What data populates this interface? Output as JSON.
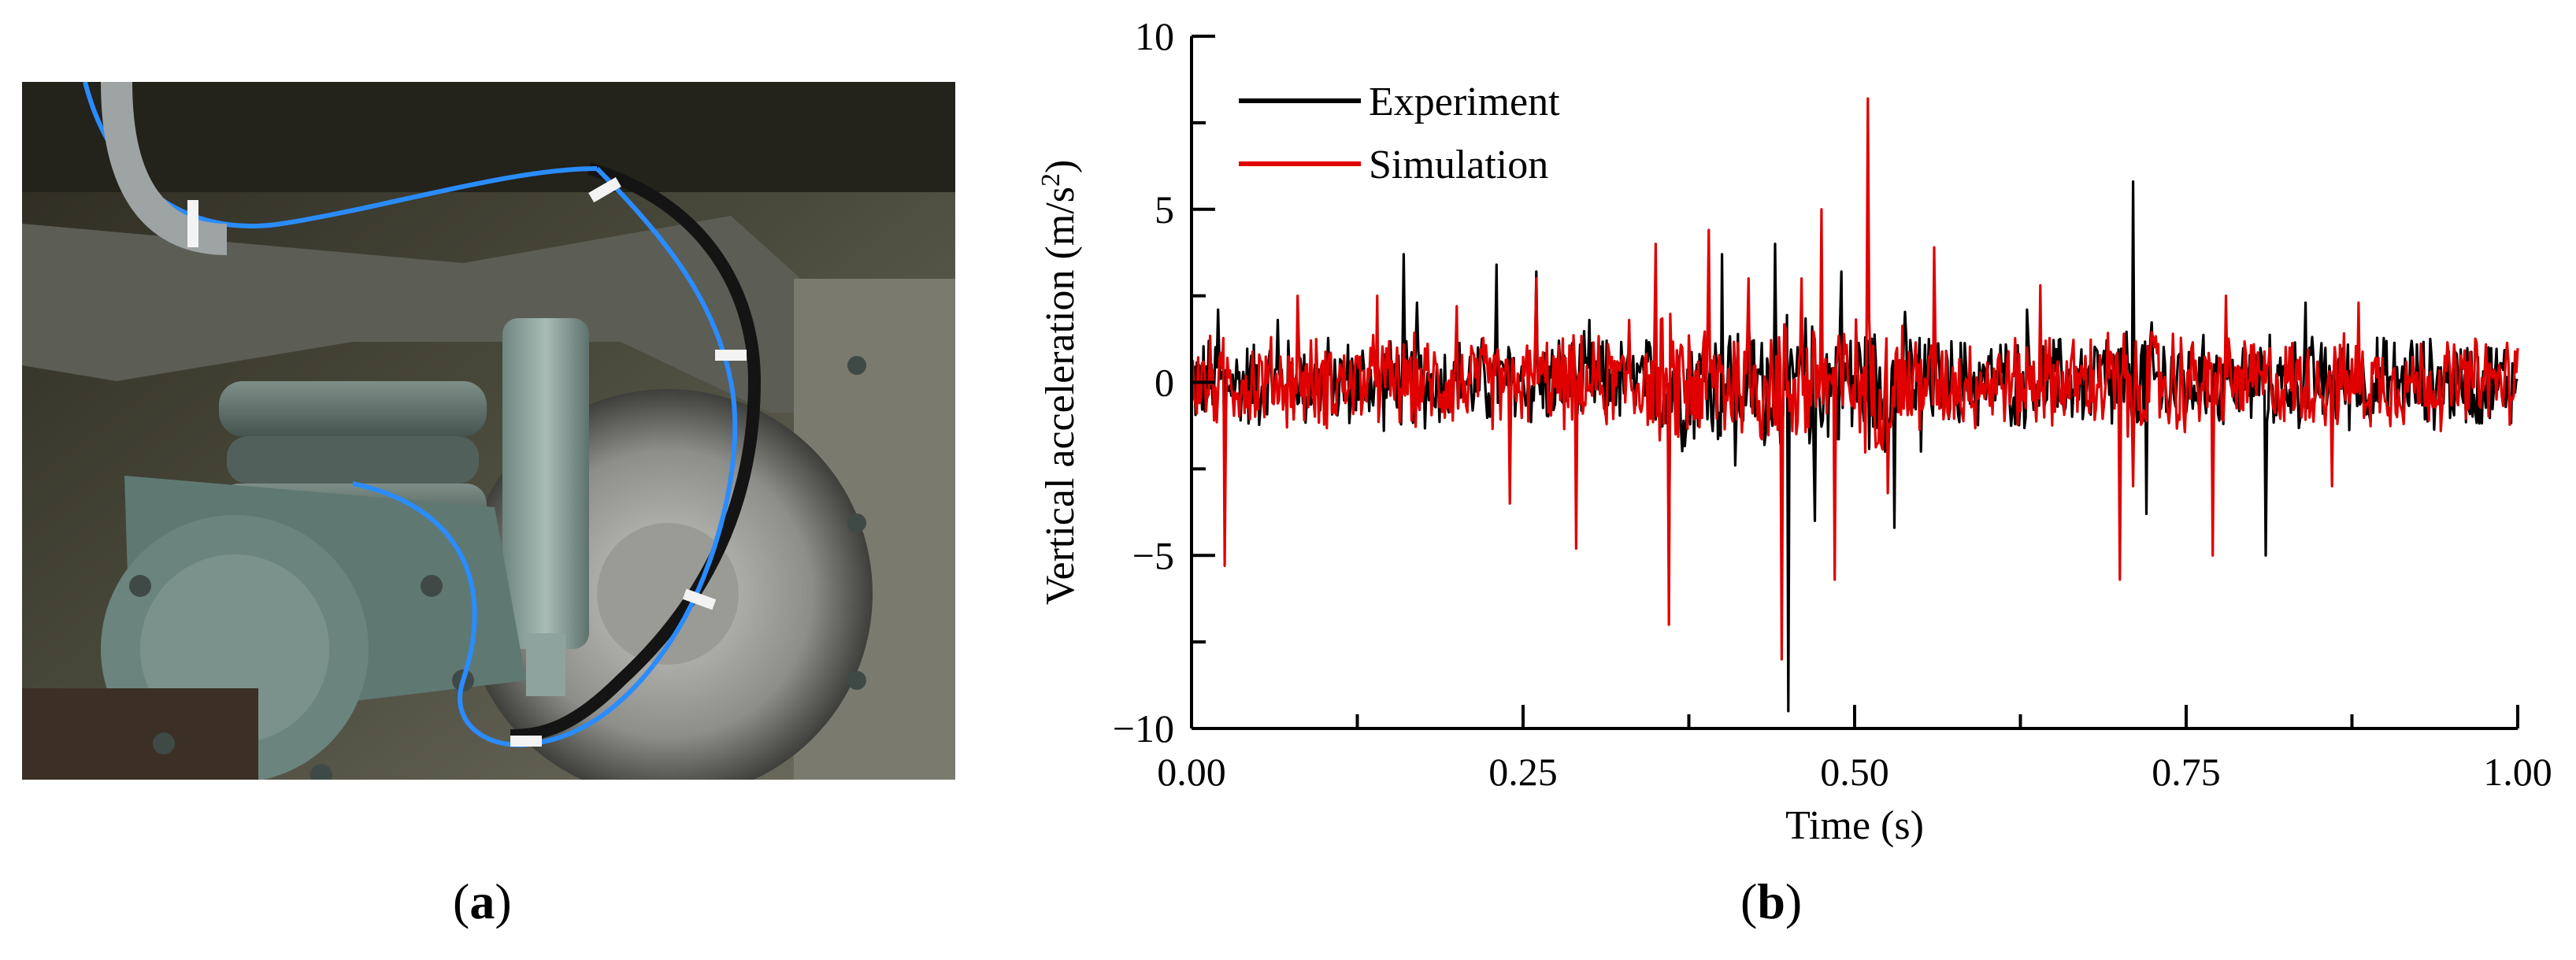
{
  "panel_a": {
    "label_open": "(",
    "label_letter": "a",
    "label_close": ")",
    "image_description_icon": "photo-icon"
  },
  "panel_b": {
    "label_open": "(",
    "label_letter": "b",
    "label_close": ")"
  },
  "chart_data": {
    "type": "line",
    "title": "",
    "xlabel": "Time (s)",
    "ylabel": "Vertical acceleration (m/s²)",
    "ylabel_main": "Vertical acceleration (m/s",
    "ylabel_sup": "2",
    "ylabel_end": ")",
    "xlim": [
      0,
      1
    ],
    "ylim": [
      -10,
      10
    ],
    "xticks": [
      0.0,
      0.25,
      0.5,
      0.75,
      1.0
    ],
    "xtick_labels": [
      "0.00",
      "0.25",
      "0.50",
      "0.75",
      "1.00"
    ],
    "yticks": [
      -10,
      -5,
      0,
      5,
      10
    ],
    "ytick_labels": [
      "−10",
      "−5",
      "0",
      "5",
      "10"
    ],
    "legend_position": "top-left",
    "grid": false,
    "series": [
      {
        "name": "Experiment",
        "color": "#000000",
        "peaks": [
          {
            "x": 0.02,
            "y": 2.1
          },
          {
            "x": 0.025,
            "y": -2.4
          },
          {
            "x": 0.065,
            "y": 1.8
          },
          {
            "x": 0.16,
            "y": 3.7
          },
          {
            "x": 0.17,
            "y": 2.3
          },
          {
            "x": 0.23,
            "y": 3.4
          },
          {
            "x": 0.26,
            "y": 3.2
          },
          {
            "x": 0.3,
            "y": 1.8
          },
          {
            "x": 0.36,
            "y": -5.4
          },
          {
            "x": 0.4,
            "y": 3.7
          },
          {
            "x": 0.41,
            "y": -2.4
          },
          {
            "x": 0.44,
            "y": 4.0
          },
          {
            "x": 0.45,
            "y": -9.5
          },
          {
            "x": 0.47,
            "y": -4.0
          },
          {
            "x": 0.49,
            "y": 3.2
          },
          {
            "x": 0.53,
            "y": -4.2
          },
          {
            "x": 0.55,
            "y": -2.0
          },
          {
            "x": 0.63,
            "y": 2.1
          },
          {
            "x": 0.7,
            "y": -3.3
          },
          {
            "x": 0.71,
            "y": 5.8
          },
          {
            "x": 0.72,
            "y": -3.8
          },
          {
            "x": 0.81,
            "y": -5.0
          },
          {
            "x": 0.84,
            "y": 2.3
          },
          {
            "x": 0.92,
            "y": 1.2
          }
        ]
      },
      {
        "name": "Simulation",
        "color": "#e00000",
        "peaks": [
          {
            "x": 0.025,
            "y": -5.3
          },
          {
            "x": 0.08,
            "y": 2.5
          },
          {
            "x": 0.14,
            "y": 2.5
          },
          {
            "x": 0.2,
            "y": 2.2
          },
          {
            "x": 0.24,
            "y": -3.5
          },
          {
            "x": 0.26,
            "y": 3.0
          },
          {
            "x": 0.29,
            "y": -4.8
          },
          {
            "x": 0.33,
            "y": 1.8
          },
          {
            "x": 0.35,
            "y": 4.0
          },
          {
            "x": 0.36,
            "y": -7.0
          },
          {
            "x": 0.39,
            "y": 4.4
          },
          {
            "x": 0.42,
            "y": 3.0
          },
          {
            "x": 0.445,
            "y": -8.0
          },
          {
            "x": 0.46,
            "y": 3.0
          },
          {
            "x": 0.475,
            "y": 5.0
          },
          {
            "x": 0.485,
            "y": -5.7
          },
          {
            "x": 0.51,
            "y": 8.2
          },
          {
            "x": 0.525,
            "y": -3.2
          },
          {
            "x": 0.56,
            "y": 3.9
          },
          {
            "x": 0.64,
            "y": 2.8
          },
          {
            "x": 0.7,
            "y": -5.7
          },
          {
            "x": 0.71,
            "y": -3.0
          },
          {
            "x": 0.77,
            "y": -5.0
          },
          {
            "x": 0.78,
            "y": 2.5
          },
          {
            "x": 0.86,
            "y": -3.0
          },
          {
            "x": 0.88,
            "y": 2.3
          }
        ]
      }
    ]
  }
}
